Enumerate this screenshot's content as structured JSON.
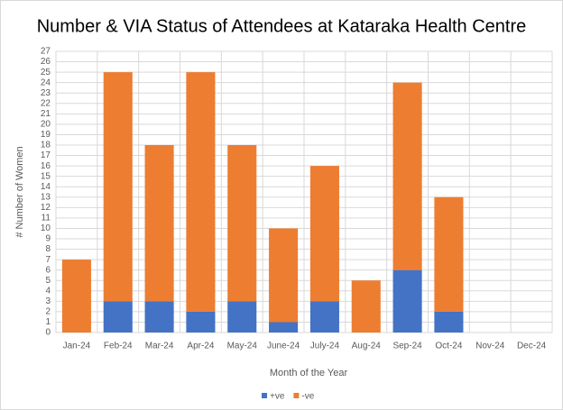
{
  "chart_data": {
    "type": "stacked_bar",
    "title": "Number & VIA Status of Attendees at Kataraka Health Centre",
    "x_label": "Month of the Year",
    "y_label": "# Number of Women",
    "categories": [
      "Jan-24",
      "Feb-24",
      "Mar-24",
      "Apr-24",
      "May-24",
      "June-24",
      "July-24",
      "Aug-24",
      "Sep-24",
      "Oct-24",
      "Nov-24",
      "Dec-24"
    ],
    "series": [
      {
        "name": "+ve",
        "color": "#4472c4",
        "values": [
          0,
          3,
          3,
          2,
          3,
          1,
          3,
          0,
          6,
          2,
          null,
          null
        ]
      },
      {
        "name": "-ve",
        "color": "#ed7d31",
        "values": [
          7,
          22,
          15,
          23,
          15,
          9,
          13,
          5,
          18,
          11,
          null,
          null
        ]
      }
    ],
    "ylim": [
      0,
      27
    ],
    "yticks": [
      0,
      1,
      2,
      3,
      4,
      5,
      6,
      7,
      8,
      9,
      10,
      11,
      12,
      13,
      14,
      15,
      16,
      17,
      18,
      19,
      20,
      21,
      22,
      23,
      24,
      25,
      26,
      27
    ],
    "grid": true,
    "legend": "bottom"
  }
}
